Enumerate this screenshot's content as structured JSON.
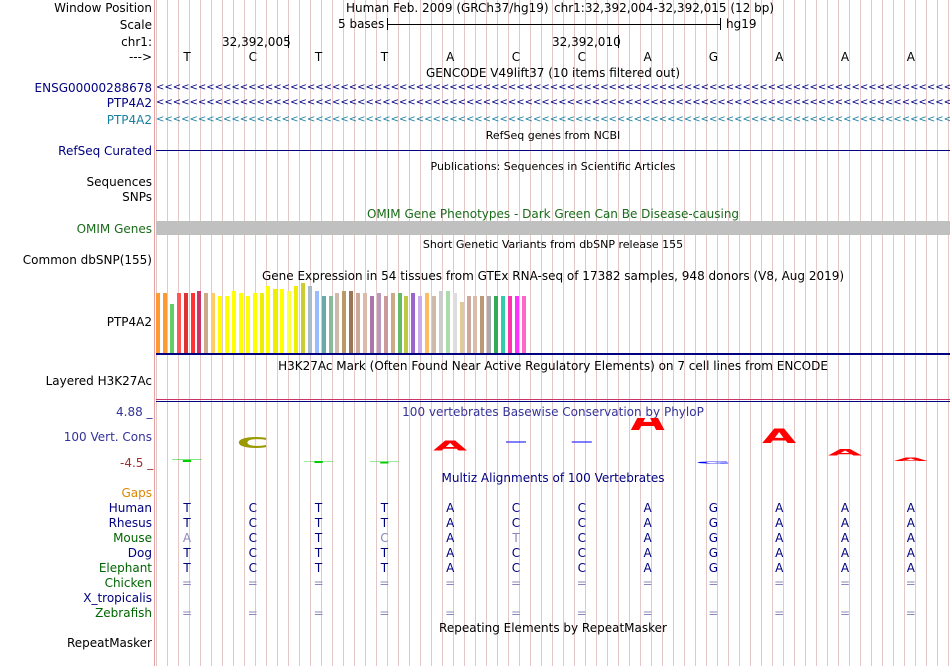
{
  "header": {
    "window_position_label": "Window Position",
    "assembly": "Human Feb. 2009 (GRCh37/hg19)",
    "position": "chr1:32,392,004-32,392,015 (12 bp)",
    "scale_label": "Scale",
    "scale_text": "5 bases",
    "scale_db": "hg19",
    "chrom_label": "chr1:",
    "tick1": "32,392,005",
    "tick2": "32,392,010",
    "strand_label": "--->"
  },
  "sequence": [
    "T",
    "C",
    "T",
    "T",
    "A",
    "C",
    "C",
    "A",
    "G",
    "A",
    "A",
    "A"
  ],
  "tracks": {
    "gencode_title": "GENCODE V49lift37 (10 items filtered out)",
    "gencode_items": [
      "ENSG00000288678",
      "PTP4A2",
      "PTP4A2"
    ],
    "refseq_title": "RefSeq genes from NCBI",
    "refseq_label": "RefSeq Curated",
    "pubs_title": "Publications: Sequences in Scientific Articles",
    "pubs_labels": [
      "Sequences",
      "SNPs"
    ],
    "omim_title": "OMIM Gene Phenotypes - Dark Green Can Be Disease-causing",
    "omim_label": "OMIM Genes",
    "dbsnp_title": "Short Genetic Variants from dbSNP release 155",
    "dbsnp_label": "Common dbSNP(155)",
    "gtex_title": "Gene Expression in 54 tissues from GTEx RNA-seq of 17382 samples, 948 donors (V8, Aug 2019)",
    "gtex_label": "PTP4A2",
    "h3k_title": "H3K27Ac Mark (Often Found Near Active Regulatory Elements) on 7 cell lines from ENCODE",
    "h3k_label": "Layered H3K27Ac",
    "phylop_title": "100 vertebrates Basewise Conservation by PhyloP",
    "phylop_label": "100 Vert. Cons",
    "phylop_max": "4.88 _",
    "phylop_min": "-4.5 _",
    "multiz_title": "Multiz Alignments of 100 Vertebrates",
    "gaps_label": "Gaps",
    "repeat_title": "Repeating Elements by RepeatMasker",
    "repeat_label": "RepeatMasker"
  },
  "chevron": "<<<<<<<<<<<<<<<<<<<<<<<<<<<<<<<<<<<<<<<<<<<<<<<<<<<<<<<<<<<<<<<<<<<<<<<<<<<<<<<<<<<<<<<<<<<<<<<<<<<<<<<<<<<<<<<<<<<<<<<<<<<<<<<<<<<<<",
  "alignments": [
    {
      "species": "Human",
      "color": "#000080",
      "bases": [
        "T",
        "C",
        "T",
        "T",
        "A",
        "C",
        "C",
        "A",
        "G",
        "A",
        "A",
        "A"
      ]
    },
    {
      "species": "Rhesus",
      "color": "#000080",
      "bases": [
        "T",
        "C",
        "T",
        "T",
        "A",
        "C",
        "C",
        "A",
        "G",
        "A",
        "A",
        "A"
      ]
    },
    {
      "species": "Mouse",
      "color": "#006400",
      "bases": [
        "A",
        "C",
        "T",
        "C",
        "A",
        "T",
        "C",
        "A",
        "G",
        "A",
        "A",
        "A"
      ]
    },
    {
      "species": "Dog",
      "color": "#000080",
      "bases": [
        "T",
        "C",
        "T",
        "T",
        "A",
        "C",
        "C",
        "A",
        "G",
        "A",
        "A",
        "A"
      ]
    },
    {
      "species": "Elephant",
      "color": "#006400",
      "bases": [
        "T",
        "C",
        "T",
        "T",
        "A",
        "C",
        "C",
        "A",
        "G",
        "A",
        "A",
        "A"
      ]
    },
    {
      "species": "Chicken",
      "color": "#006400",
      "bases": [
        "=",
        "=",
        "=",
        "=",
        "=",
        "=",
        "=",
        "=",
        "=",
        "=",
        "=",
        "="
      ]
    },
    {
      "species": "X_tropicalis",
      "color": "#000080",
      "bases": [
        "",
        "",
        "",
        "",
        "",
        "",
        "",
        "",
        "",
        "",
        "",
        ""
      ]
    },
    {
      "species": "Zebrafish",
      "color": "#006400",
      "bases": [
        "=",
        "=",
        "=",
        "=",
        "=",
        "=",
        "=",
        "=",
        "=",
        "=",
        "=",
        "="
      ]
    }
  ],
  "mouse_mismatch_cols": [
    0,
    3,
    5
  ],
  "gtex_values": [
    58,
    58,
    48,
    58,
    58,
    58,
    60,
    58,
    58,
    55,
    55,
    60,
    58,
    55,
    58,
    58,
    65,
    62,
    62,
    60,
    65,
    68,
    65,
    60,
    55,
    55,
    58,
    60,
    60,
    58,
    58,
    55,
    58,
    55,
    58,
    58,
    55,
    58,
    55,
    58,
    55,
    60,
    60,
    58,
    50,
    55,
    55,
    55,
    55,
    55,
    55,
    55,
    55,
    55
  ],
  "gtex_colors": [
    "#ff9933",
    "#ff9933",
    "#66cc66",
    "#ff5555",
    "#dd3333",
    "#ff3333",
    "#cc3366",
    "#ccaa88",
    "#ffcc66",
    "#ffff00",
    "#ffff00",
    "#ffff00",
    "#ffff00",
    "#ffff00",
    "#ffff00",
    "#eeee00",
    "#ffff00",
    "#eeee00",
    "#ffff00",
    "#ffff44",
    "#eeee00",
    "#cccc33",
    "#aabbcc",
    "#99bbff",
    "#66aaaa",
    "#88bb99",
    "#ccbbaa",
    "#bb9966",
    "#997755",
    "#ccaa99",
    "#ddbbaa",
    "#aa77aa",
    "#bb99bb",
    "#cc9999",
    "#ccaa88",
    "#66bb66",
    "#bbcc44",
    "#9966cc",
    "#ccaaee",
    "#ffbb66",
    "#ccbbaa",
    "#cccccc",
    "#aaddaa",
    "#dddddd",
    "#ddcc99",
    "#ccaa99",
    "#ddbbaa",
    "#bb9977",
    "#aaaaaa",
    "#33aa55",
    "#33ccaa",
    "#ff33aa",
    "#ff33ff",
    "#ff66cc"
  ],
  "phylop": [
    {
      "base": "T",
      "color": "#00cc00",
      "height": 0.08
    },
    {
      "base": "C",
      "color": "#999900",
      "height": 0.35
    },
    {
      "base": "T",
      "color": "#00cc00",
      "height": 0.06
    },
    {
      "base": "T",
      "color": "#00cc00",
      "height": 0.05
    },
    {
      "base": "A",
      "color": "#ff0000",
      "height": 0.3
    },
    {
      "base": "C",
      "color": "#0000ff",
      "height": 0.0
    },
    {
      "base": "C",
      "color": "#0000ff",
      "height": 0.0
    },
    {
      "base": "A",
      "color": "#ff0000",
      "height": 0.7
    },
    {
      "base": "G",
      "color": "#0000ff",
      "height": -0.05
    },
    {
      "base": "A",
      "color": "#ff0000",
      "height": 0.45
    },
    {
      "base": "A",
      "color": "#ff0000",
      "height": 0.2
    },
    {
      "base": "A",
      "color": "#ff0000",
      "height": 0.1
    }
  ]
}
